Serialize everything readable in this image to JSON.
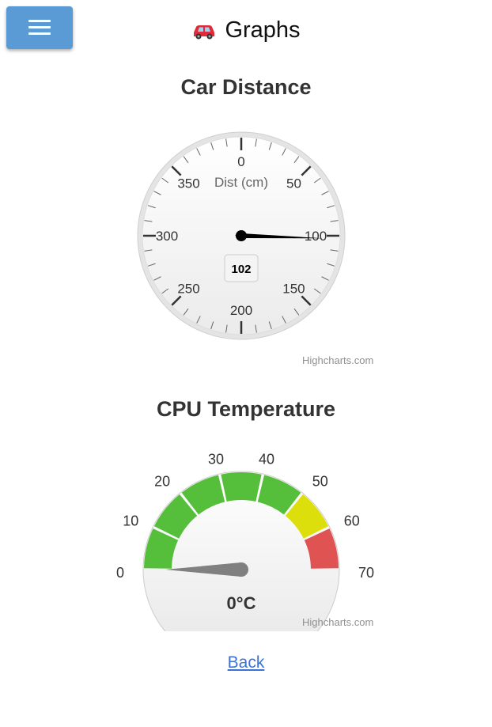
{
  "menu": {
    "icon": "hamburger-menu-icon"
  },
  "header": {
    "title": "Graphs",
    "icon": "car-icon"
  },
  "charts": [
    {
      "title": "Car Distance",
      "credit": "Highcharts.com"
    },
    {
      "title": "CPU Temperature",
      "credit": "Highcharts.com"
    }
  ],
  "chart_data": [
    {
      "type": "gauge",
      "title": "Car Distance",
      "pane_label": "Dist (cm)",
      "min": 0,
      "max": 400,
      "tick_labels": [
        "0",
        "50",
        "100",
        "150",
        "200",
        "250",
        "300",
        "350"
      ],
      "tick_values": [
        0,
        50,
        100,
        150,
        200,
        250,
        300,
        350
      ],
      "value": 102,
      "value_label": "102"
    },
    {
      "type": "solid-gauge",
      "title": "CPU Temperature",
      "min": 0,
      "max": 70,
      "tick_labels": [
        "0",
        "10",
        "20",
        "30",
        "40",
        "50",
        "60",
        "70"
      ],
      "tick_values": [
        0,
        10,
        20,
        30,
        40,
        50,
        60,
        70
      ],
      "bands": [
        {
          "from": 0,
          "to": 10,
          "color": "#55bf3b"
        },
        {
          "from": 10,
          "to": 20,
          "color": "#55bf3b"
        },
        {
          "from": 20,
          "to": 30,
          "color": "#55bf3b"
        },
        {
          "from": 30,
          "to": 40,
          "color": "#55bf3b"
        },
        {
          "from": 40,
          "to": 50,
          "color": "#55bf3b"
        },
        {
          "from": 50,
          "to": 60,
          "color": "#dddf0d"
        },
        {
          "from": 60,
          "to": 70,
          "color": "#df5353"
        }
      ],
      "value": 0,
      "value_label": "0°C"
    }
  ],
  "footer": {
    "back_label": "Back"
  },
  "colors": {
    "accent": "#5b9bd5",
    "link": "#3a72d8"
  }
}
